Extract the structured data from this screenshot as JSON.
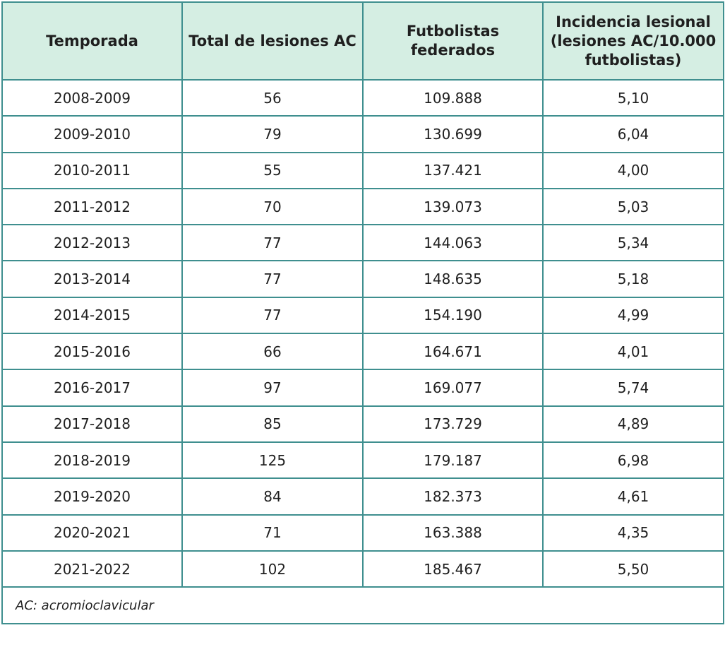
{
  "table": {
    "headers": [
      "Temporada",
      "Total de lesiones AC",
      "Futbolistas federados",
      "Incidencia lesional (lesiones AC/10.000 futbolistas)"
    ],
    "rows": [
      [
        "2008-2009",
        "56",
        "109.888",
        "5,10"
      ],
      [
        "2009-2010",
        "79",
        "130.699",
        "6,04"
      ],
      [
        "2010-2011",
        "55",
        "137.421",
        "4,00"
      ],
      [
        "2011-2012",
        "70",
        "139.073",
        "5,03"
      ],
      [
        "2012-2013",
        "77",
        "144.063",
        "5,34"
      ],
      [
        "2013-2014",
        "77",
        "148.635",
        "5,18"
      ],
      [
        "2014-2015",
        "77",
        "154.190",
        "4,99"
      ],
      [
        "2015-2016",
        "66",
        "164.671",
        "4,01"
      ],
      [
        "2016-2017",
        "97",
        "169.077",
        "5,74"
      ],
      [
        "2017-2018",
        "85",
        "173.729",
        "4,89"
      ],
      [
        "2018-2019",
        "125",
        "179.187",
        "6,98"
      ],
      [
        "2019-2020",
        "84",
        "182.373",
        "4,61"
      ],
      [
        "2020-2021",
        "71",
        "163.388",
        "4,35"
      ],
      [
        "2021-2022",
        "102",
        "185.467",
        "5,50"
      ]
    ],
    "footnote": "AC: acromioclavicular"
  },
  "colors": {
    "header_bg": "#d5eee3",
    "border": "#3f8f8f"
  }
}
